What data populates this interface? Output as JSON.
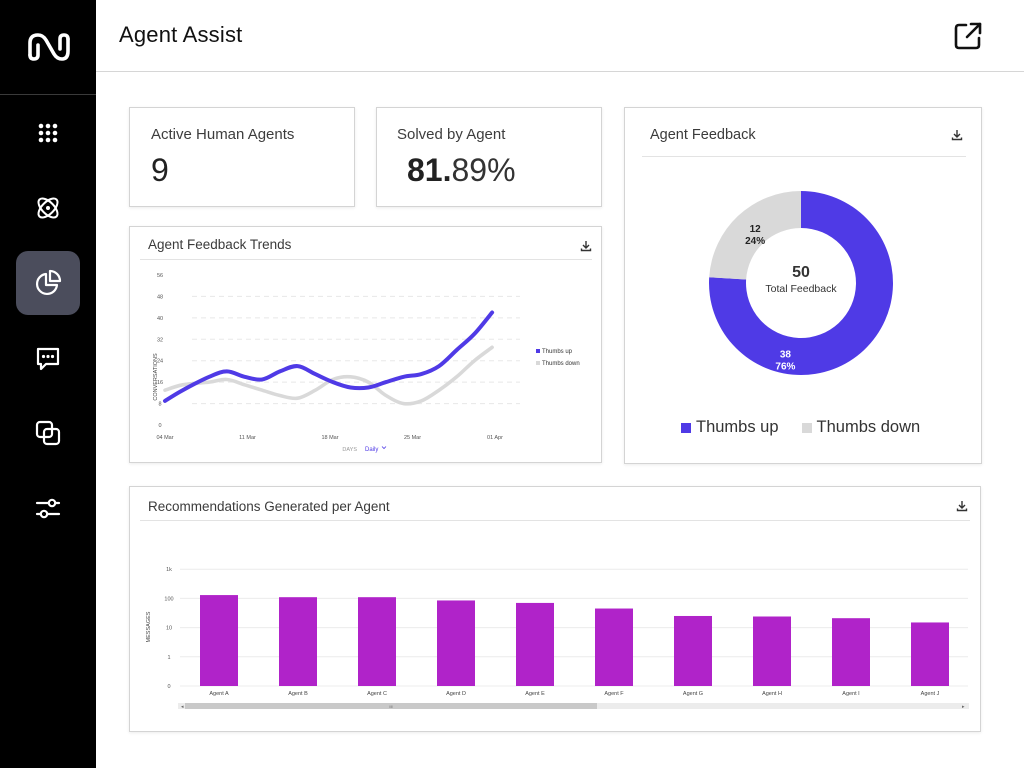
{
  "header": {
    "title": "Agent Assist"
  },
  "sidebar": {
    "items": [
      {
        "id": "apps",
        "icon": "grid-dots-icon"
      },
      {
        "id": "ai",
        "icon": "atom-icon"
      },
      {
        "id": "analytics",
        "icon": "pie-chart-icon",
        "active": true
      },
      {
        "id": "conversations",
        "icon": "chat-bubble-icon"
      },
      {
        "id": "integrations",
        "icon": "overlap-squares-icon"
      },
      {
        "id": "settings",
        "icon": "sliders-icon"
      }
    ]
  },
  "kpis": {
    "active_agents": {
      "label": "Active Human Agents",
      "value": "9"
    },
    "solved_by_agent": {
      "label": "Solved by Agent",
      "value_int": "81.",
      "value_frac": "89%"
    }
  },
  "colors": {
    "purple": "#4f3ae6",
    "gray": "#d9d9d9",
    "magenta": "#b023c9"
  },
  "trends": {
    "title": "Agent Feedback Trends",
    "ylabel": "CONVERSATIONS",
    "xaxis_label": "DAYS",
    "interval": "Daily",
    "chart_data": {
      "type": "line",
      "yticks": [
        0,
        8,
        16,
        24,
        32,
        40,
        48,
        56
      ],
      "ylim": [
        0,
        56
      ],
      "x_tick_labels": [
        "04 Mar",
        "11 Mar",
        "18 Mar",
        "25 Mar",
        "01 Apr"
      ],
      "x_days": 28,
      "series": [
        {
          "name": "Thumbs up",
          "points": [
            [
              0,
              9
            ],
            [
              2,
              13
            ],
            [
              5,
              18
            ],
            [
              7,
              20
            ],
            [
              9,
              18
            ],
            [
              11,
              17
            ],
            [
              13,
              20
            ],
            [
              15,
              22
            ],
            [
              17,
              19
            ],
            [
              19,
              16
            ],
            [
              21,
              14
            ],
            [
              23,
              14
            ],
            [
              25,
              16
            ],
            [
              27,
              18
            ],
            [
              29,
              19
            ],
            [
              31,
              22
            ],
            [
              33,
              28
            ],
            [
              35,
              34
            ],
            [
              37,
              42
            ]
          ]
        },
        {
          "name": "Thumbs down",
          "points": [
            [
              0,
              13
            ],
            [
              2,
              15
            ],
            [
              5,
              16
            ],
            [
              7,
              17
            ],
            [
              9,
              15
            ],
            [
              11,
              13
            ],
            [
              13,
              11
            ],
            [
              15,
              10
            ],
            [
              17,
              13
            ],
            [
              19,
              17
            ],
            [
              21,
              18
            ],
            [
              23,
              16
            ],
            [
              25,
              11
            ],
            [
              27,
              8
            ],
            [
              29,
              9
            ],
            [
              31,
              13
            ],
            [
              33,
              18
            ],
            [
              35,
              24
            ],
            [
              37,
              29
            ]
          ]
        }
      ]
    }
  },
  "feedback": {
    "title": "Agent Feedback",
    "center_value": "50",
    "center_label": "Total Feedback",
    "chart_data": {
      "type": "pie",
      "total": 50,
      "slices": [
        {
          "name": "Thumbs up",
          "value": 38,
          "value_label": "38",
          "pct_label": "76%"
        },
        {
          "name": "Thumbs down",
          "value": 12,
          "value_label": "12",
          "pct_label": "24%"
        }
      ]
    },
    "legend": [
      "Thumbs up",
      "Thumbs down"
    ]
  },
  "recommendations": {
    "title": "Recommendations Generated per Agent",
    "ylabel": "MESSAGES",
    "scroll_label": "III",
    "chart_data": {
      "type": "bar",
      "scale": "log",
      "yticks": [
        "0",
        "1",
        "10",
        "100",
        "1k"
      ],
      "categories": [
        "Agent A",
        "Agent B",
        "Agent C",
        "Agent D",
        "Agent E",
        "Agent F",
        "Agent G",
        "Agent H",
        "Agent I",
        "Agent J"
      ],
      "values": [
        130,
        110,
        110,
        85,
        70,
        45,
        25,
        24,
        21,
        15
      ]
    }
  }
}
